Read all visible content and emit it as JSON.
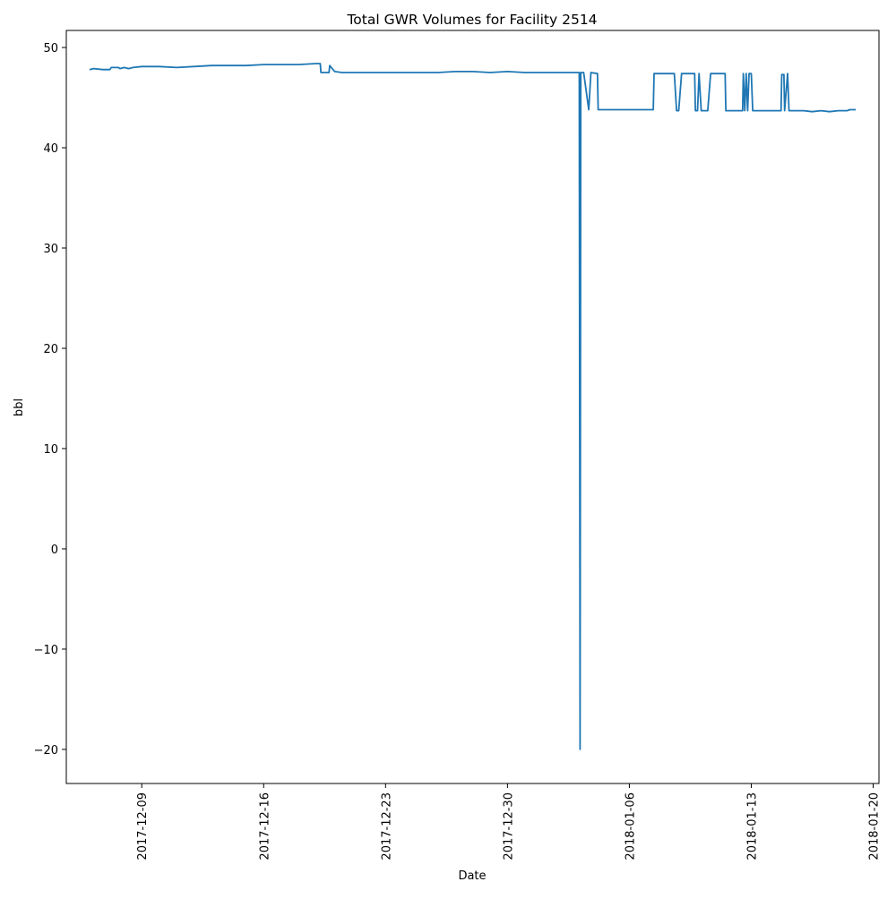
{
  "chart_data": {
    "type": "line",
    "title": "Total GWR Volumes for Facility 2514",
    "xlabel": "Date",
    "ylabel": "bbl",
    "x_axis_type": "date",
    "xlim": [
      "2017-12-04T16:00",
      "2018-01-20T08:00"
    ],
    "ylim": [
      -23.4,
      51.7
    ],
    "x_ticks": [
      "2017-12-09",
      "2017-12-16",
      "2017-12-23",
      "2017-12-30",
      "2018-01-06",
      "2018-01-13",
      "2018-01-20"
    ],
    "y_ticks": [
      -20,
      -10,
      0,
      10,
      20,
      30,
      40,
      50
    ],
    "y_tick_labels": [
      "−20",
      "−10",
      "0",
      "10",
      "20",
      "30",
      "40",
      "50"
    ],
    "grid": false,
    "legend": "none",
    "line_color": "#1f77b4",
    "series": [
      {
        "points": [
          [
            "2017-12-06T00:00",
            47.8
          ],
          [
            "2017-12-06T06:00",
            47.9
          ],
          [
            "2017-12-06T18:00",
            47.8
          ],
          [
            "2017-12-07T04:00",
            47.8
          ],
          [
            "2017-12-07T06:00",
            48.0
          ],
          [
            "2017-12-07T16:00",
            48.0
          ],
          [
            "2017-12-07T18:00",
            47.9
          ],
          [
            "2017-12-08T00:00",
            48.0
          ],
          [
            "2017-12-08T06:00",
            47.9
          ],
          [
            "2017-12-08T12:00",
            48.0
          ],
          [
            "2017-12-09T00:00",
            48.1
          ],
          [
            "2017-12-10T00:00",
            48.1
          ],
          [
            "2017-12-11T00:00",
            48.0
          ],
          [
            "2017-12-12T00:00",
            48.1
          ],
          [
            "2017-12-13T00:00",
            48.2
          ],
          [
            "2017-12-14T00:00",
            48.2
          ],
          [
            "2017-12-15T00:00",
            48.2
          ],
          [
            "2017-12-16T00:00",
            48.3
          ],
          [
            "2017-12-17T00:00",
            48.3
          ],
          [
            "2017-12-18T00:00",
            48.3
          ],
          [
            "2017-12-19T00:00",
            48.4
          ],
          [
            "2017-12-19T06:00",
            48.4
          ],
          [
            "2017-12-19T07:00",
            47.5
          ],
          [
            "2017-12-19T18:00",
            47.5
          ],
          [
            "2017-12-19T19:00",
            48.2
          ],
          [
            "2017-12-20T02:00",
            47.6
          ],
          [
            "2017-12-20T12:00",
            47.5
          ],
          [
            "2017-12-21T00:00",
            47.5
          ],
          [
            "2017-12-22T00:00",
            47.5
          ],
          [
            "2017-12-23T00:00",
            47.5
          ],
          [
            "2017-12-24T00:00",
            47.5
          ],
          [
            "2017-12-25T00:00",
            47.5
          ],
          [
            "2017-12-26T00:00",
            47.5
          ],
          [
            "2017-12-27T00:00",
            47.6
          ],
          [
            "2017-12-28T00:00",
            47.6
          ],
          [
            "2017-12-29T00:00",
            47.5
          ],
          [
            "2017-12-30T00:00",
            47.6
          ],
          [
            "2017-12-31T00:00",
            47.5
          ],
          [
            "2018-01-01T00:00",
            47.5
          ],
          [
            "2018-01-02T00:00",
            47.5
          ],
          [
            "2018-01-03T00:00",
            47.5
          ],
          [
            "2018-01-03T03:00",
            47.5
          ],
          [
            "2018-01-03T04:00",
            -20.0
          ],
          [
            "2018-01-03T05:00",
            47.5
          ],
          [
            "2018-01-03T09:00",
            47.5
          ],
          [
            "2018-01-03T16:00",
            43.8
          ],
          [
            "2018-01-03T19:00",
            47.5
          ],
          [
            "2018-01-04T04:00",
            47.4
          ],
          [
            "2018-01-04T05:00",
            43.8
          ],
          [
            "2018-01-05T00:00",
            43.8
          ],
          [
            "2018-01-06T00:00",
            43.8
          ],
          [
            "2018-01-07T00:00",
            43.8
          ],
          [
            "2018-01-07T09:00",
            43.8
          ],
          [
            "2018-01-07T10:00",
            47.4
          ],
          [
            "2018-01-08T14:00",
            47.4
          ],
          [
            "2018-01-08T17:00",
            43.7
          ],
          [
            "2018-01-08T20:00",
            43.7
          ],
          [
            "2018-01-09T00:00",
            47.4
          ],
          [
            "2018-01-09T18:00",
            47.4
          ],
          [
            "2018-01-09T19:00",
            43.7
          ],
          [
            "2018-01-09T22:00",
            43.7
          ],
          [
            "2018-01-10T00:00",
            47.4
          ],
          [
            "2018-01-10T03:00",
            43.7
          ],
          [
            "2018-01-10T12:00",
            43.7
          ],
          [
            "2018-01-10T16:00",
            47.4
          ],
          [
            "2018-01-11T12:00",
            47.4
          ],
          [
            "2018-01-11T13:00",
            43.7
          ],
          [
            "2018-01-12T12:00",
            43.7
          ],
          [
            "2018-01-12T13:00",
            47.4
          ],
          [
            "2018-01-12T15:00",
            43.7
          ],
          [
            "2018-01-12T17:00",
            47.4
          ],
          [
            "2018-01-12T19:00",
            43.7
          ],
          [
            "2018-01-12T21:00",
            47.4
          ],
          [
            "2018-01-13T00:00",
            47.4
          ],
          [
            "2018-01-13T02:00",
            43.7
          ],
          [
            "2018-01-14T00:00",
            43.7
          ],
          [
            "2018-01-14T17:00",
            43.7
          ],
          [
            "2018-01-14T18:00",
            47.3
          ],
          [
            "2018-01-14T21:00",
            47.3
          ],
          [
            "2018-01-14T22:00",
            43.7
          ],
          [
            "2018-01-15T02:00",
            47.4
          ],
          [
            "2018-01-15T04:00",
            43.7
          ],
          [
            "2018-01-16T00:00",
            43.7
          ],
          [
            "2018-01-16T12:00",
            43.6
          ],
          [
            "2018-01-17T00:00",
            43.7
          ],
          [
            "2018-01-17T12:00",
            43.6
          ],
          [
            "2018-01-18T00:00",
            43.7
          ],
          [
            "2018-01-18T12:00",
            43.7
          ],
          [
            "2018-01-18T16:00",
            43.8
          ],
          [
            "2018-01-19T00:00",
            43.8
          ]
        ]
      }
    ]
  }
}
